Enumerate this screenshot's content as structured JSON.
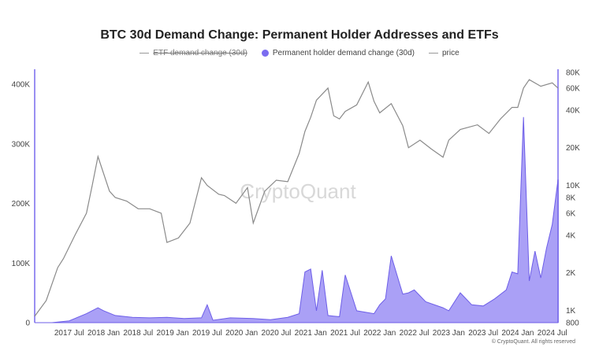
{
  "chart_data": {
    "type": "area",
    "title": "BTC 30d Demand Change: Permanent Holder Addresses and ETFs",
    "legend": {
      "placement": "top",
      "entries": [
        {
          "label": "ETF demand change (30d)",
          "style": "line",
          "color": "#999999",
          "strikethrough": true
        },
        {
          "label": "Permanent holder demand change (30d)",
          "style": "dot",
          "color": "#7b6cf0"
        },
        {
          "label": "price",
          "style": "line",
          "color": "#999999"
        }
      ]
    },
    "y_left": {
      "ticks": [
        "0",
        "100K",
        "200K",
        "300K",
        "400K"
      ],
      "tick_values": [
        0,
        100000,
        200000,
        300000,
        400000
      ],
      "range": [
        0,
        420000
      ]
    },
    "y_right": {
      "scale": "log",
      "ticks": [
        "800",
        "1K",
        "2K",
        "4K",
        "6K",
        "8K",
        "10K",
        "20K",
        "40K",
        "60K",
        "80K"
      ],
      "tick_values": [
        800,
        1000,
        2000,
        4000,
        6000,
        8000,
        10000,
        20000,
        40000,
        60000,
        80000
      ],
      "range": [
        800,
        80000
      ]
    },
    "x_axis": {
      "ticks": [
        "2017 Jul",
        "2018 Jan",
        "2018 Jul",
        "2019 Jan",
        "2019 Jul",
        "2020 Jan",
        "2020 Jul",
        "2021 Jan",
        "2021 Jul",
        "2022 Jan",
        "2022 Jul",
        "2023 Jan",
        "2023 Jul",
        "2024 Jan",
        "2024 Jul"
      ],
      "range": [
        "2017-01",
        "2024-08"
      ]
    },
    "grid": false,
    "series": [
      {
        "name": "Permanent holder demand change (30d)",
        "color": "#7b6cf0",
        "x": [
          "2017-01",
          "2017-04",
          "2017-07",
          "2017-10",
          "2017-12",
          "2018-01",
          "2018-03",
          "2018-06",
          "2018-09",
          "2018-12",
          "2019-03",
          "2019-06",
          "2019-07",
          "2019-08",
          "2019-11",
          "2020-03",
          "2020-06",
          "2020-09",
          "2020-11",
          "2020-12",
          "2021-01",
          "2021-02",
          "2021-03",
          "2021-04",
          "2021-05",
          "2021-06",
          "2021-07",
          "2021-08",
          "2021-09",
          "2021-12",
          "2022-01",
          "2022-02",
          "2022-03",
          "2022-05",
          "2022-06",
          "2022-07",
          "2022-09",
          "2022-12",
          "2023-01",
          "2023-03",
          "2023-05",
          "2023-07",
          "2023-09",
          "2023-11",
          "2023-12",
          "2024-01",
          "2024-02",
          "2024-03",
          "2024-04",
          "2024-05",
          "2024-06",
          "2024-07",
          "2024-08"
        ],
        "values": [
          0,
          0,
          3000,
          15000,
          25000,
          20000,
          12000,
          9000,
          8000,
          9000,
          7000,
          8000,
          30000,
          4000,
          8000,
          7000,
          5000,
          9000,
          15000,
          85000,
          90000,
          20000,
          88000,
          12000,
          11000,
          10000,
          80000,
          50000,
          20000,
          15000,
          30000,
          40000,
          112000,
          48000,
          50000,
          55000,
          35000,
          25000,
          20000,
          50000,
          30000,
          28000,
          40000,
          55000,
          85000,
          82000,
          345000,
          70000,
          120000,
          75000,
          125000,
          165000,
          240000
        ]
      },
      {
        "name": "price",
        "color": "#999999",
        "x": [
          "2017-01",
          "2017-03",
          "2017-05",
          "2017-06",
          "2017-08",
          "2017-10",
          "2017-11",
          "2017-12",
          "2018-02",
          "2018-03",
          "2018-05",
          "2018-07",
          "2018-09",
          "2018-11",
          "2018-12",
          "2019-02",
          "2019-04",
          "2019-06",
          "2019-07",
          "2019-09",
          "2019-10",
          "2019-12",
          "2020-02",
          "2020-03",
          "2020-05",
          "2020-07",
          "2020-09",
          "2020-11",
          "2020-12",
          "2021-01",
          "2021-02",
          "2021-04",
          "2021-05",
          "2021-06",
          "2021-07",
          "2021-09",
          "2021-11",
          "2021-12",
          "2022-01",
          "2022-03",
          "2022-05",
          "2022-06",
          "2022-08",
          "2022-10",
          "2022-12",
          "2023-01",
          "2023-03",
          "2023-06",
          "2023-08",
          "2023-10",
          "2023-12",
          "2024-01",
          "2024-02",
          "2024-03",
          "2024-05",
          "2024-07",
          "2024-08"
        ],
        "values": [
          900,
          1200,
          2200,
          2600,
          4000,
          6000,
          10000,
          17000,
          9000,
          8000,
          7500,
          6500,
          6500,
          6000,
          3500,
          3800,
          5000,
          11500,
          10000,
          8500,
          8300,
          7200,
          9600,
          5000,
          9000,
          11000,
          10700,
          18000,
          27000,
          35000,
          48000,
          60000,
          36000,
          34000,
          39000,
          44000,
          67000,
          47000,
          38000,
          45000,
          30000,
          20000,
          23000,
          19500,
          16800,
          23000,
          28000,
          30500,
          26000,
          34000,
          42000,
          42000,
          60000,
          70000,
          62000,
          66000,
          60000
        ]
      }
    ]
  },
  "watermark": "CryptoQuant",
  "credit": "© CryptoQuant. All rights reserved"
}
